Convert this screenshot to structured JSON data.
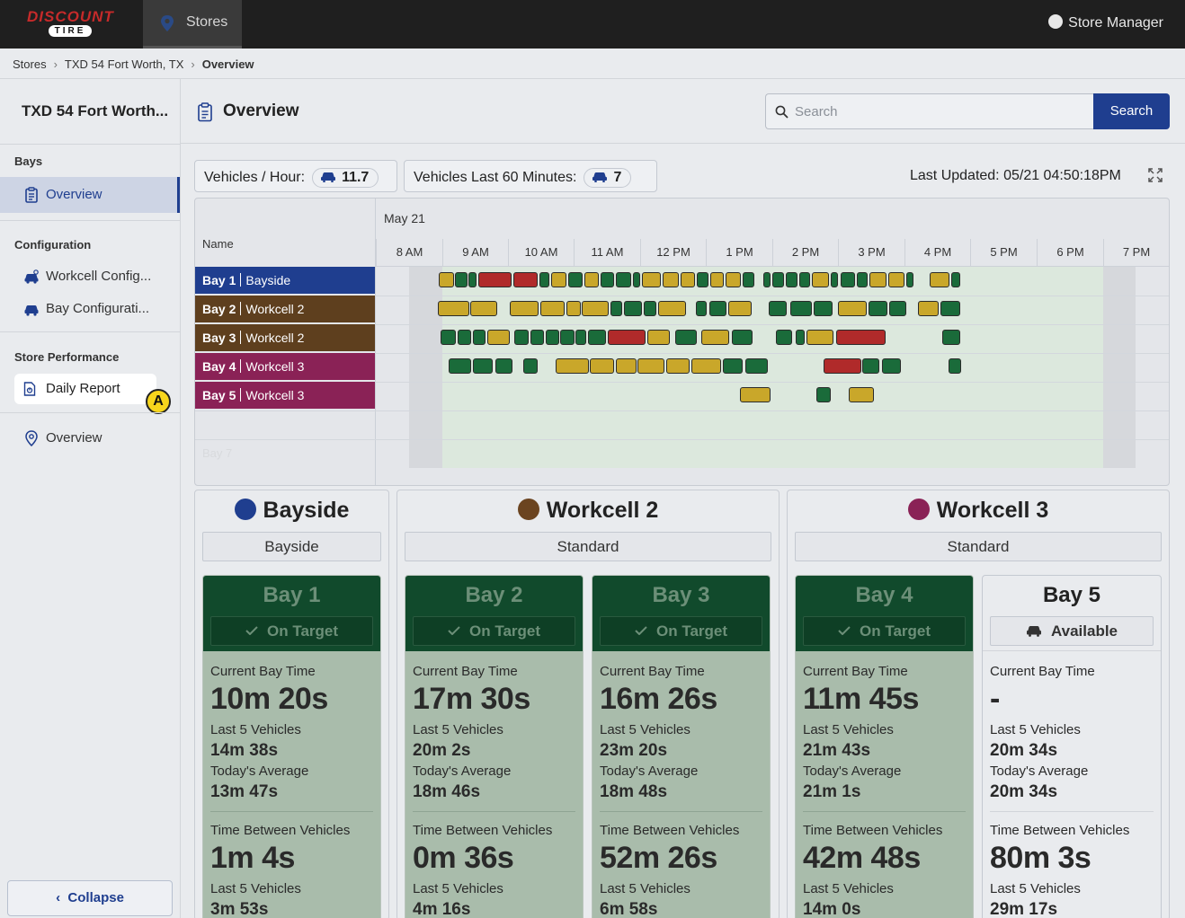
{
  "topbar": {
    "logo_line1": "DISCOUNT",
    "logo_line2": "TIRE",
    "tab_label": "Stores",
    "user_label": "Store Manager"
  },
  "breadcrumb": [
    "Stores",
    "TXD 54 Fort Worth, TX",
    "Overview"
  ],
  "sidebar": {
    "store_title": "TXD 54 Fort Worth...",
    "bays_section": "Bays",
    "overview_label": "Overview",
    "config_section": "Configuration",
    "workcell_label": "Workcell Config...",
    "bayconfig_label": "Bay Configurati...",
    "perf_section": "Store Performance",
    "daily_label": "Daily Report",
    "marker": "A",
    "overview2_label": "Overview",
    "collapse_label": "Collapse"
  },
  "header": {
    "title": "Overview",
    "search_placeholder": "Search",
    "search_button": "Search"
  },
  "metrics": {
    "vph_label": "Vehicles / Hour:",
    "vph_value": "11.7",
    "v60_label": "Vehicles Last 60 Minutes:",
    "v60_value": "7",
    "last_updated": "Last Updated: 05/21 04:50:18PM"
  },
  "timeline": {
    "date": "May 21",
    "name_header": "Name",
    "hours": [
      "8 AM",
      "9 AM",
      "10 AM",
      "11 AM",
      "12 PM",
      "1 PM",
      "2 PM",
      "3 PM",
      "4 PM",
      "5 PM",
      "6 PM",
      "7 PM"
    ],
    "rows": [
      {
        "bay": "Bay 1",
        "group": "Bayside",
        "color": "#1f3e8f"
      },
      {
        "bay": "Bay 2",
        "group": "Workcell 2",
        "color": "#5e3f1e"
      },
      {
        "bay": "Bay 3",
        "group": "Workcell 2",
        "color": "#5e3f1e"
      },
      {
        "bay": "Bay 4",
        "group": "Workcell 3",
        "color": "#8a2256"
      },
      {
        "bay": "Bay 5",
        "group": "Workcell 3",
        "color": "#8a2256"
      }
    ],
    "ghost_row": "Bay 7"
  },
  "groups": [
    {
      "name": "Bayside",
      "type": "Bayside",
      "color": "#1f3e8f"
    },
    {
      "name": "Workcell 2",
      "type": "Standard",
      "color": "#6b4420"
    },
    {
      "name": "Workcell 3",
      "type": "Standard",
      "color": "#8a2256"
    }
  ],
  "labels": {
    "current": "Current Bay Time",
    "last5": "Last 5 Vehicles",
    "avg": "Today's Average",
    "between": "Time Between Vehicles"
  },
  "bays": [
    {
      "name": "Bay 1",
      "status": "On Target",
      "current": "10m 20s",
      "last5": "14m 38s",
      "avg": "13m 47s",
      "between": "1m 4s",
      "between_last5": "3m 53s"
    },
    {
      "name": "Bay 2",
      "status": "On Target",
      "current": "17m 30s",
      "last5": "20m 2s",
      "avg": "18m 46s",
      "between": "0m 36s",
      "between_last5": "4m 16s"
    },
    {
      "name": "Bay 3",
      "status": "On Target",
      "current": "16m 26s",
      "last5": "23m 20s",
      "avg": "18m 48s",
      "between": "52m 26s",
      "between_last5": "6m 58s"
    },
    {
      "name": "Bay 4",
      "status": "On Target",
      "current": "11m 45s",
      "last5": "21m 43s",
      "avg": "21m 1s",
      "between": "42m 48s",
      "between_last5": "14m 0s"
    },
    {
      "name": "Bay 5",
      "status": "Available",
      "current": "-",
      "last5": "20m 34s",
      "avg": "20m 34s",
      "between": "80m 3s",
      "between_last5": "29m 17s"
    }
  ]
}
